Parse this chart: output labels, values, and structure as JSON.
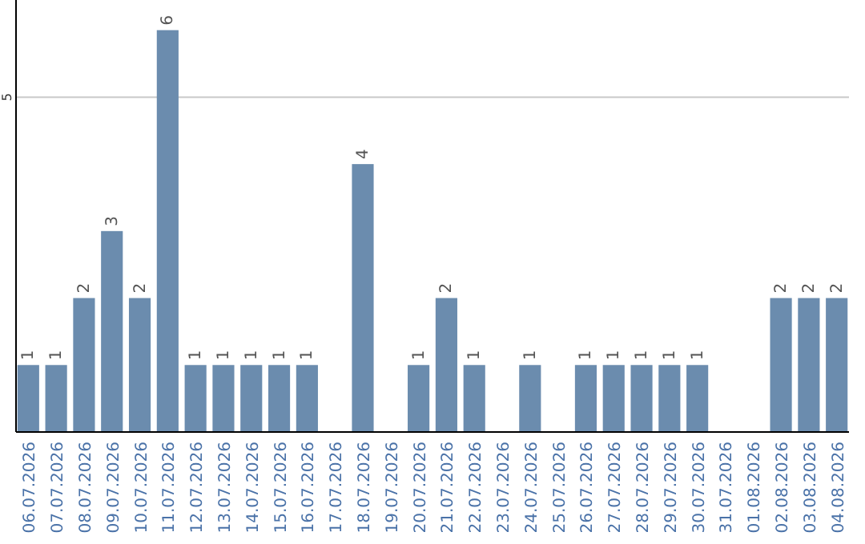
{
  "chart_data": {
    "type": "bar",
    "categories": [
      "06.07.2026",
      "07.07.2026",
      "08.07.2026",
      "09.07.2026",
      "10.07.2026",
      "11.07.2026",
      "12.07.2026",
      "13.07.2026",
      "14.07.2026",
      "15.07.2026",
      "16.07.2026",
      "17.07.2026",
      "18.07.2026",
      "19.07.2026",
      "20.07.2026",
      "21.07.2026",
      "22.07.2026",
      "23.07.2026",
      "24.07.2026",
      "25.07.2026",
      "26.07.2026",
      "27.07.2026",
      "28.07.2026",
      "29.07.2026",
      "30.07.2026",
      "31.07.2026",
      "01.08.2026",
      "02.08.2026",
      "03.08.2026",
      "04.08.2026"
    ],
    "values": [
      1,
      1,
      2,
      3,
      2,
      6,
      1,
      1,
      1,
      1,
      1,
      null,
      4,
      null,
      1,
      2,
      1,
      null,
      1,
      null,
      1,
      1,
      1,
      1,
      1,
      null,
      null,
      2,
      2,
      2
    ],
    "color": "#6b8cae",
    "ylim": [
      0,
      6.45
    ],
    "yticks": [
      5
    ],
    "grid": "y",
    "data_labels": true
  }
}
